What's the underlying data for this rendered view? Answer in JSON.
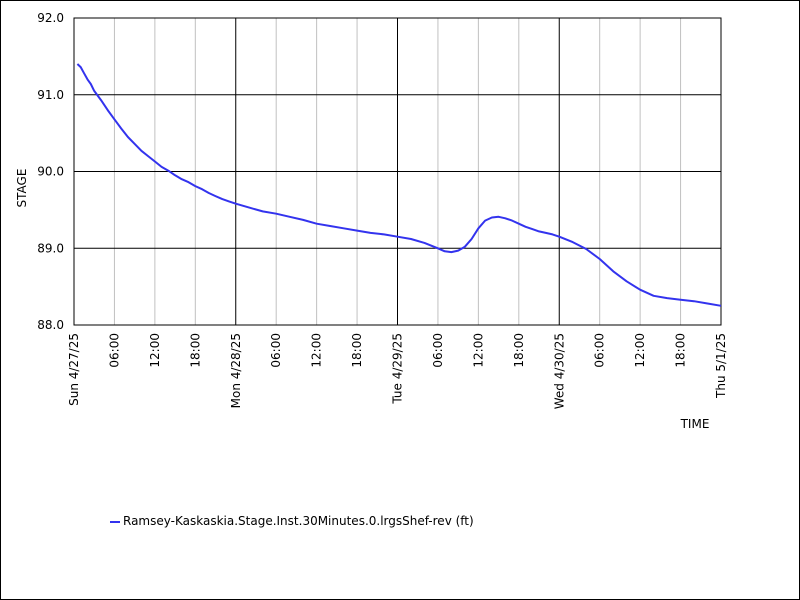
{
  "chart_data": {
    "type": "line",
    "xlabel": "TIME",
    "ylabel": "STAGE",
    "ylim": [
      88.0,
      92.0
    ],
    "y_ticks": [
      "88.0",
      "89.0",
      "90.0",
      "91.0",
      "92.0"
    ],
    "x_range_hours": [
      0,
      96
    ],
    "x_ticks": [
      {
        "hour": 0,
        "label": "Sun 4/27/25",
        "major": true
      },
      {
        "hour": 6,
        "label": "06:00",
        "major": false
      },
      {
        "hour": 12,
        "label": "12:00",
        "major": false
      },
      {
        "hour": 18,
        "label": "18:00",
        "major": false
      },
      {
        "hour": 24,
        "label": "Mon 4/28/25",
        "major": true
      },
      {
        "hour": 30,
        "label": "06:00",
        "major": false
      },
      {
        "hour": 36,
        "label": "12:00",
        "major": false
      },
      {
        "hour": 42,
        "label": "18:00",
        "major": false
      },
      {
        "hour": 48,
        "label": "Tue 4/29/25",
        "major": true
      },
      {
        "hour": 54,
        "label": "06:00",
        "major": false
      },
      {
        "hour": 60,
        "label": "12:00",
        "major": false
      },
      {
        "hour": 66,
        "label": "18:00",
        "major": false
      },
      {
        "hour": 72,
        "label": "Wed 4/30/25",
        "major": true
      },
      {
        "hour": 78,
        "label": "06:00",
        "major": false
      },
      {
        "hour": 84,
        "label": "12:00",
        "major": false
      },
      {
        "hour": 90,
        "label": "18:00",
        "major": false
      },
      {
        "hour": 96,
        "label": "Thu 5/1/25",
        "major": true
      }
    ],
    "grid": true,
    "legend_position": "bottom",
    "series": [
      {
        "name": "Ramsey-Kaskaskia.Stage.Inst.30Minutes.0.lrgsShef-rev (ft)",
        "color": "#3333ee",
        "x": [
          0.5,
          1,
          1.5,
          2,
          2.5,
          3,
          4,
          5,
          6,
          7,
          8,
          9,
          10,
          11,
          12,
          13,
          14,
          15,
          16,
          17,
          18,
          19,
          20,
          21,
          22,
          23,
          24,
          26,
          28,
          30,
          32,
          34,
          36,
          38,
          40,
          42,
          44,
          46,
          48,
          50,
          52,
          54,
          55,
          56,
          57,
          58,
          59,
          60,
          61,
          62,
          63,
          64,
          65,
          66,
          67,
          68,
          69,
          70,
          71,
          72,
          74,
          76,
          78,
          80,
          82,
          84,
          86,
          88,
          90,
          92,
          94,
          96
        ],
        "values": [
          91.4,
          91.36,
          91.28,
          91.2,
          91.14,
          91.05,
          90.93,
          90.8,
          90.68,
          90.56,
          90.45,
          90.36,
          90.27,
          90.2,
          90.13,
          90.06,
          90.01,
          89.95,
          89.9,
          89.86,
          89.81,
          89.77,
          89.72,
          89.68,
          89.64,
          89.61,
          89.58,
          89.53,
          89.48,
          89.45,
          89.41,
          89.37,
          89.32,
          89.29,
          89.26,
          89.23,
          89.2,
          89.18,
          89.15,
          89.12,
          89.07,
          89.0,
          88.96,
          88.95,
          88.97,
          89.02,
          89.12,
          89.26,
          89.36,
          89.4,
          89.41,
          89.39,
          89.36,
          89.32,
          89.28,
          89.25,
          89.22,
          89.2,
          89.18,
          89.15,
          89.08,
          88.99,
          88.86,
          88.7,
          88.57,
          88.46,
          88.38,
          88.35,
          88.33,
          88.31,
          88.28,
          88.25
        ]
      }
    ]
  }
}
